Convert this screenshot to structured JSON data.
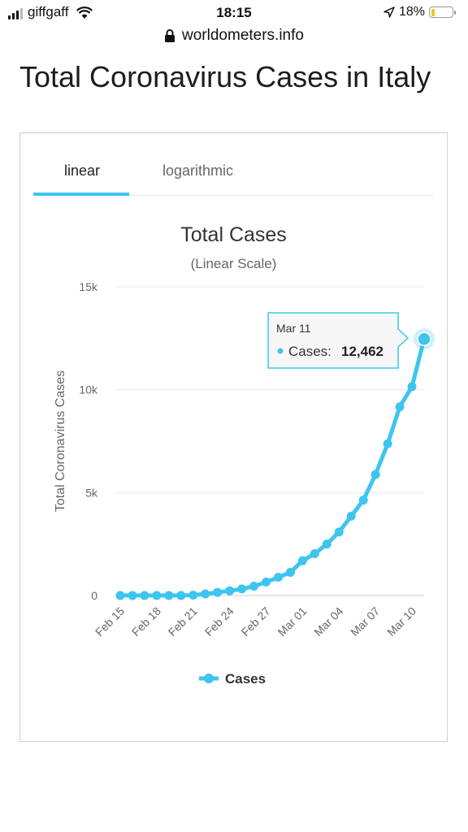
{
  "status": {
    "carrier": "giffgaff",
    "time": "18:15",
    "battery": "18%",
    "battery_level": 0.18
  },
  "browser": {
    "url": "worldometers.info"
  },
  "page": {
    "title": "Total Coronavirus Cases in Italy"
  },
  "tabs": [
    {
      "label": "linear",
      "active": true
    },
    {
      "label": "logarithmic",
      "active": false
    }
  ],
  "colors": {
    "series": "#3ec5ef",
    "tab_underline": "#3ec5ef"
  },
  "chart_data": {
    "type": "line",
    "title": "Total Cases",
    "subtitle": "(Linear Scale)",
    "ylabel": "Total Coronavirus Cases",
    "xlabel": "",
    "ylim": [
      0,
      15000
    ],
    "yticks": [
      0,
      5000,
      10000,
      15000
    ],
    "ytick_labels": [
      "0",
      "5k",
      "10k",
      "15k"
    ],
    "grid": true,
    "legend_position": "bottom",
    "categories": [
      "Feb 15",
      "Feb 16",
      "Feb 17",
      "Feb 18",
      "Feb 19",
      "Feb 20",
      "Feb 21",
      "Feb 22",
      "Feb 23",
      "Feb 24",
      "Feb 25",
      "Feb 26",
      "Feb 27",
      "Feb 28",
      "Feb 29",
      "Mar 01",
      "Mar 02",
      "Mar 03",
      "Mar 04",
      "Mar 05",
      "Mar 06",
      "Mar 07",
      "Mar 08",
      "Mar 09",
      "Mar 10",
      "Mar 11"
    ],
    "xtick_labels": [
      "Feb 15",
      "Feb 18",
      "Feb 21",
      "Feb 24",
      "Feb 27",
      "Mar 01",
      "Mar 04",
      "Mar 07",
      "Mar 10"
    ],
    "series": [
      {
        "name": "Cases",
        "values": [
          3,
          3,
          3,
          3,
          3,
          3,
          20,
          79,
          155,
          229,
          322,
          453,
          655,
          888,
          1128,
          1694,
          2036,
          2502,
          3089,
          3858,
          4636,
          5883,
          7375,
          9172,
          10149,
          12462
        ]
      }
    ],
    "tooltip": {
      "date": "Mar 11",
      "label": "Cases:",
      "value": "12,462"
    }
  }
}
